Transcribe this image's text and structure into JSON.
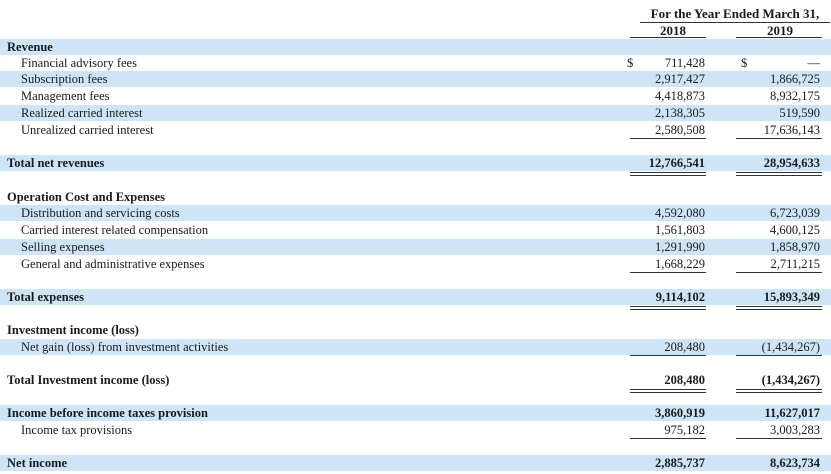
{
  "header": {
    "period_title": "For the Year Ended March 31,",
    "years": [
      "2018",
      "2019"
    ]
  },
  "currency_symbol": "$",
  "revenue": {
    "heading": "Revenue",
    "items": [
      {
        "label": "Financial advisory fees",
        "v2018": "711,428",
        "v2019": "—"
      },
      {
        "label": "Subscription fees",
        "v2018": "2,917,427",
        "v2019": "1,866,725"
      },
      {
        "label": "Management fees",
        "v2018": "4,418,873",
        "v2019": "8,932,175"
      },
      {
        "label": "Realized carried interest",
        "v2018": "2,138,305",
        "v2019": "519,590"
      },
      {
        "label": "Unrealized carried interest",
        "v2018": "2,580,508",
        "v2019": "17,636,143"
      }
    ],
    "total": {
      "label": "Total net revenues",
      "v2018": "12,766,541",
      "v2019": "28,954,633"
    }
  },
  "expenses": {
    "heading": "Operation Cost and Expenses",
    "items": [
      {
        "label": "Distribution and servicing costs",
        "v2018": "4,592,080",
        "v2019": "6,723,039"
      },
      {
        "label": "Carried interest related compensation",
        "v2018": "1,561,803",
        "v2019": "4,600,125"
      },
      {
        "label": "Selling expenses",
        "v2018": "1,291,990",
        "v2019": "1,858,970"
      },
      {
        "label": "General and administrative expenses",
        "v2018": "1,668,229",
        "v2019": "2,711,215"
      }
    ],
    "total": {
      "label": "Total expenses",
      "v2018": "9,114,102",
      "v2019": "15,893,349"
    }
  },
  "investment": {
    "heading": "Investment income (loss)",
    "items": [
      {
        "label": "Net gain (loss) from investment activities",
        "v2018": "208,480",
        "v2019": "(1,434,267)"
      }
    ],
    "total": {
      "label": "Total Investment income (loss)",
      "v2018": "208,480",
      "v2019": "(1,434,267)"
    }
  },
  "pretax": {
    "label": "Income before income taxes provision",
    "v2018": "3,860,919",
    "v2019": "11,627,017"
  },
  "tax": {
    "label": "Income tax provisions",
    "v2018": "975,182",
    "v2019": "3,003,283"
  },
  "net_income": {
    "label": "Net income",
    "v2018": "2,885,737",
    "v2019": "8,623,734"
  }
}
